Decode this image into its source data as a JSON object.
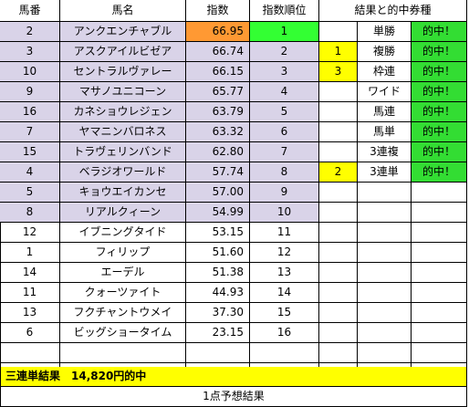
{
  "headers": [
    "馬番",
    "馬名",
    "指数",
    "指数順位",
    "結果と的中券種"
  ],
  "rows": [
    {
      "num": "2",
      "name": "アンクエンチャブル",
      "score": "66.95",
      "rank": "1",
      "res_a": "",
      "ticket": "単勝",
      "hit": "的中！"
    },
    {
      "num": "3",
      "name": "アスクアイルビゼア",
      "score": "66.74",
      "rank": "2",
      "res_a": "1",
      "ticket": "複勝",
      "hit": "的中！"
    },
    {
      "num": "10",
      "name": "セントラルヴァレー",
      "score": "66.15",
      "rank": "3",
      "res_a": "3",
      "ticket": "枠連",
      "hit": "的中！"
    },
    {
      "num": "9",
      "name": "マサノユニコーン",
      "score": "65.77",
      "rank": "4",
      "res_a": "",
      "ticket": "ワイド",
      "hit": "的中！"
    },
    {
      "num": "16",
      "name": "カネショウレジェン",
      "score": "63.79",
      "rank": "5",
      "res_a": "",
      "ticket": "馬連",
      "hit": "的中！"
    },
    {
      "num": "7",
      "name": "ヤマニンバロネス",
      "score": "63.32",
      "rank": "6",
      "res_a": "",
      "ticket": "馬単",
      "hit": "的中！"
    },
    {
      "num": "15",
      "name": "トラヴェリンバンド",
      "score": "62.80",
      "rank": "7",
      "res_a": "",
      "ticket": "3連複",
      "hit": "的中！"
    },
    {
      "num": "4",
      "name": "ベラジオワールド",
      "score": "57.74",
      "rank": "8",
      "res_a": "2",
      "ticket": "3連単",
      "hit": "的中！"
    },
    {
      "num": "5",
      "name": "キョウエイカンセ",
      "score": "57.00",
      "rank": "9",
      "res_a": "",
      "ticket": "",
      "hit": ""
    },
    {
      "num": "8",
      "name": "リアルクィーン",
      "score": "54.99",
      "rank": "10",
      "res_a": "",
      "ticket": "",
      "hit": ""
    },
    {
      "num": "12",
      "name": "イブニングタイド",
      "score": "53.15",
      "rank": "11",
      "res_a": "",
      "ticket": "",
      "hit": ""
    },
    {
      "num": "1",
      "name": "フィリップ",
      "score": "51.60",
      "rank": "12",
      "res_a": "",
      "ticket": "",
      "hit": ""
    },
    {
      "num": "14",
      "name": "エーデル",
      "score": "51.38",
      "rank": "13",
      "res_a": "",
      "ticket": "",
      "hit": ""
    },
    {
      "num": "11",
      "name": "クォーツァイト",
      "score": "44.93",
      "rank": "14",
      "res_a": "",
      "ticket": "",
      "hit": ""
    },
    {
      "num": "13",
      "name": "フクチャントウメイ",
      "score": "37.30",
      "rank": "15",
      "res_a": "",
      "ticket": "",
      "hit": ""
    },
    {
      "num": "6",
      "name": "ビッグショータイム",
      "score": "23.15",
      "rank": "16",
      "res_a": "",
      "ticket": "",
      "hit": ""
    },
    {
      "num": "",
      "name": "",
      "score": "",
      "rank": "",
      "res_a": "",
      "ticket": "",
      "hit": ""
    },
    {
      "num": "",
      "name": "",
      "score": "",
      "rank": "",
      "res_a": "",
      "ticket": "",
      "hit": ""
    }
  ],
  "result_text": "三連単結果　14,820円的中",
  "footer_note": "1点予想結果",
  "colors": {
    "lavender": "#d9d3e8",
    "top_score": "#ff9933",
    "top_rank": "#33ff33",
    "result_marker": "#ffff00",
    "hit_green": "#33dd33",
    "banner": "#ffff00"
  }
}
